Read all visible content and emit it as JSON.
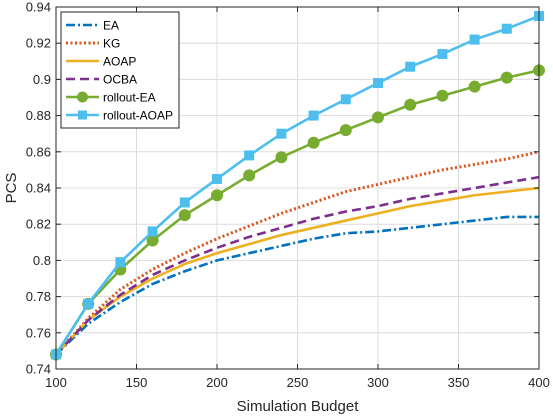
{
  "chart_data": {
    "type": "line",
    "title": "",
    "xlabel": "Simulation Budget",
    "ylabel": "PCS",
    "xlim": [
      100,
      400
    ],
    "ylim": [
      0.74,
      0.94
    ],
    "xticks": [
      100,
      150,
      200,
      250,
      300,
      350,
      400
    ],
    "yticks": [
      0.74,
      0.76,
      0.78,
      0.8,
      0.82,
      0.84,
      0.86,
      0.88,
      0.9,
      0.92,
      0.94
    ],
    "grid": true,
    "legend_position": "top-left",
    "x": [
      100,
      120,
      140,
      160,
      180,
      200,
      220,
      240,
      260,
      280,
      300,
      320,
      340,
      360,
      380,
      400
    ],
    "series": [
      {
        "name": "EA",
        "color": "#0072BD",
        "style": "dashdot",
        "marker": "none",
        "values": [
          0.748,
          0.765,
          0.777,
          0.787,
          0.794,
          0.8,
          0.804,
          0.808,
          0.812,
          0.815,
          0.816,
          0.818,
          0.82,
          0.822,
          0.824,
          0.824
        ]
      },
      {
        "name": "KG",
        "color": "#D95319",
        "style": "dotted",
        "marker": "none",
        "values": [
          0.748,
          0.768,
          0.784,
          0.795,
          0.804,
          0.812,
          0.819,
          0.826,
          0.832,
          0.838,
          0.842,
          0.846,
          0.85,
          0.853,
          0.856,
          0.86
        ]
      },
      {
        "name": "AOAP",
        "color": "#EDB120",
        "style": "solid",
        "marker": "none",
        "values": [
          0.748,
          0.767,
          0.78,
          0.79,
          0.798,
          0.804,
          0.809,
          0.814,
          0.818,
          0.822,
          0.826,
          0.83,
          0.833,
          0.836,
          0.838,
          0.84
        ]
      },
      {
        "name": "OCBA",
        "color": "#7E2F8E",
        "style": "dashed",
        "marker": "none",
        "values": [
          0.748,
          0.767,
          0.781,
          0.792,
          0.8,
          0.807,
          0.813,
          0.818,
          0.823,
          0.827,
          0.83,
          0.834,
          0.837,
          0.84,
          0.843,
          0.846
        ]
      },
      {
        "name": "rollout-EA",
        "color": "#77AC30",
        "style": "solid",
        "marker": "circle",
        "values": [
          0.748,
          0.776,
          0.795,
          0.811,
          0.825,
          0.836,
          0.847,
          0.857,
          0.865,
          0.872,
          0.879,
          0.886,
          0.891,
          0.896,
          0.901,
          0.905
        ]
      },
      {
        "name": "rollout-AOAP",
        "color": "#4DBEEE",
        "style": "solid",
        "marker": "square",
        "values": [
          0.748,
          0.776,
          0.799,
          0.816,
          0.832,
          0.845,
          0.858,
          0.87,
          0.88,
          0.889,
          0.898,
          0.907,
          0.914,
          0.922,
          0.928,
          0.935
        ]
      }
    ]
  }
}
